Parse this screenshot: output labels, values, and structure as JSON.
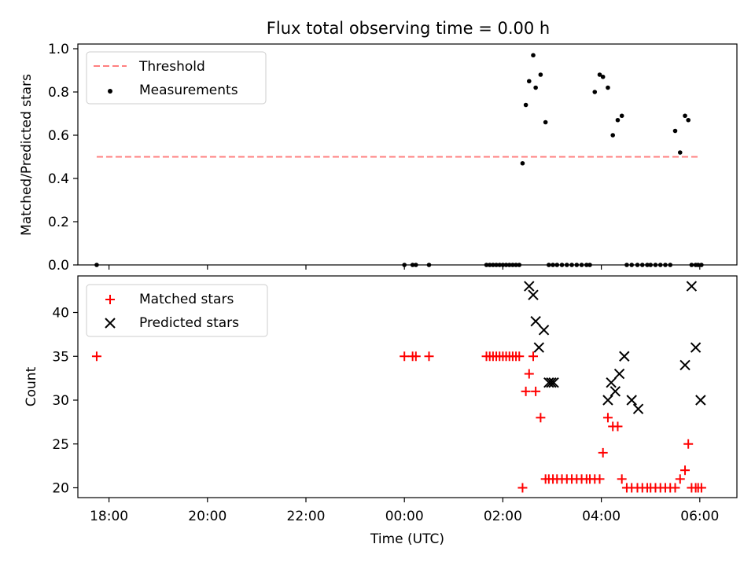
{
  "title": "Flux total observing time = 0.00 h",
  "colors": {
    "threshold": "#ff7f7f",
    "measurement": "#000000",
    "matched": "#ff0000",
    "predicted": "#000000"
  },
  "chart_data": [
    {
      "type": "scatter",
      "ylabel": "Matched/Predicted stars",
      "ylim": [
        0,
        1.0
      ],
      "yticks": [
        0.0,
        0.2,
        0.4,
        0.6,
        0.8,
        1.0
      ],
      "ytick_labels": [
        "0.0",
        "0.2",
        "0.4",
        "0.6",
        "0.8",
        "1.0"
      ],
      "legend": {
        "placement": "top-left",
        "entries": [
          "Threshold",
          "Measurements"
        ]
      },
      "threshold": {
        "name": "Threshold",
        "y": 0.5,
        "x_start": "17:45",
        "x_end": "06:00"
      },
      "series": [
        {
          "name": "Measurements",
          "x": [
            "17:45",
            "00:00",
            "00:10",
            "00:14",
            "00:30",
            "01:40",
            "01:44",
            "01:48",
            "01:52",
            "01:56",
            "02:00",
            "02:04",
            "02:08",
            "02:12",
            "02:16",
            "02:20",
            "02:24",
            "02:28",
            "02:32",
            "02:37",
            "02:40",
            "02:46",
            "02:52",
            "02:56",
            "03:01",
            "03:06",
            "03:12",
            "03:18",
            "03:24",
            "03:30",
            "03:36",
            "03:42",
            "03:46",
            "03:52",
            "03:58",
            "04:02",
            "04:08",
            "04:14",
            "04:20",
            "04:25",
            "04:31",
            "04:37",
            "04:44",
            "04:50",
            "04:56",
            "05:00",
            "05:06",
            "05:12",
            "05:18",
            "05:24",
            "05:30",
            "05:36",
            "05:42",
            "05:46",
            "05:50",
            "05:55",
            "05:58",
            "06:02"
          ],
          "y": [
            0,
            0,
            0,
            0,
            0,
            0,
            0,
            0,
            0,
            0,
            0,
            0,
            0,
            0,
            0,
            0,
            0.47,
            0.74,
            0.85,
            0.97,
            0.82,
            0.88,
            0.66,
            0,
            0,
            0,
            0,
            0,
            0,
            0,
            0,
            0,
            0,
            0.8,
            0.88,
            0.87,
            0.82,
            0.6,
            0.67,
            0.69,
            0,
            0,
            0,
            0,
            0,
            0,
            0,
            0,
            0,
            0,
            0.62,
            0.52,
            0.69,
            0.67,
            0,
            0,
            0,
            0
          ]
        }
      ]
    },
    {
      "type": "scatter",
      "xlabel": "Time (UTC)",
      "ylabel": "Count",
      "ylim": [
        19,
        44
      ],
      "yticks": [
        20,
        25,
        30,
        35,
        40
      ],
      "xtick_labels": [
        "18:00",
        "20:00",
        "22:00",
        "00:00",
        "02:00",
        "04:00",
        "06:00"
      ],
      "legend": {
        "placement": "top-left",
        "entries": [
          "Matched stars",
          "Predicted stars"
        ]
      },
      "series": [
        {
          "name": "Matched stars",
          "marker": "plus",
          "x": [
            "17:45",
            "00:00",
            "00:10",
            "00:14",
            "00:30",
            "01:40",
            "01:44",
            "01:48",
            "01:52",
            "01:56",
            "02:00",
            "02:04",
            "02:08",
            "02:12",
            "02:16",
            "02:20",
            "02:24",
            "02:28",
            "02:32",
            "02:37",
            "02:40",
            "02:46",
            "02:52",
            "02:56",
            "03:01",
            "03:06",
            "03:12",
            "03:18",
            "03:24",
            "03:30",
            "03:36",
            "03:42",
            "03:46",
            "03:52",
            "03:58",
            "04:02",
            "04:08",
            "04:14",
            "04:20",
            "04:25",
            "04:31",
            "04:37",
            "04:44",
            "04:50",
            "04:56",
            "05:00",
            "05:06",
            "05:12",
            "05:18",
            "05:24",
            "05:30",
            "05:36",
            "05:42",
            "05:46",
            "05:50",
            "05:55",
            "05:58",
            "06:02"
          ],
          "y": [
            35,
            35,
            35,
            35,
            35,
            35,
            35,
            35,
            35,
            35,
            35,
            35,
            35,
            35,
            35,
            35,
            20,
            31,
            33,
            35,
            31,
            28,
            21,
            21,
            21,
            21,
            21,
            21,
            21,
            21,
            21,
            21,
            21,
            21,
            21,
            24,
            28,
            27,
            27,
            21,
            20,
            20,
            20,
            20,
            20,
            20,
            20,
            20,
            20,
            20,
            20,
            21,
            22,
            25,
            20,
            20,
            20,
            20
          ]
        },
        {
          "name": "Predicted stars",
          "marker": "x",
          "x": [
            "02:32",
            "02:37",
            "02:40",
            "02:44",
            "02:50",
            "02:56",
            "02:59",
            "03:02",
            "04:08",
            "04:12",
            "04:17",
            "04:22",
            "04:28",
            "04:37",
            "04:45",
            "05:42",
            "05:50",
            "05:55",
            "06:01"
          ],
          "y": [
            43,
            42,
            39,
            36,
            38,
            32,
            32,
            32,
            30,
            32,
            31,
            33,
            35,
            30,
            29,
            34,
            43,
            36,
            30
          ]
        }
      ]
    }
  ]
}
